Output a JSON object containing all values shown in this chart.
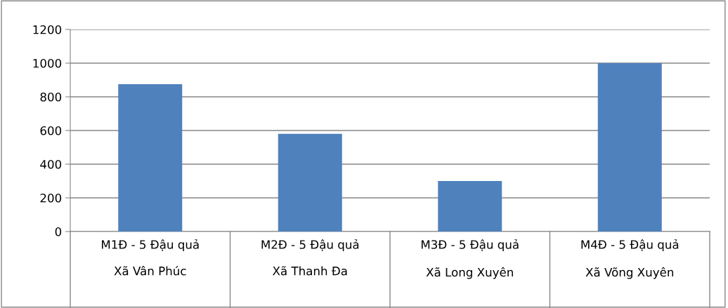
{
  "chart_data": {
    "type": "bar",
    "categories": [
      "M1Đ - 5 Đậu quả\nXã Vân Phúc",
      "M2Đ - 5 Đậu quả\nXã Thanh Đa",
      "M3Đ - 5 Đậu quả\nXã Long Xuyên",
      "M4Đ - 5 Đậu quả\nXã Võng Xuyên"
    ],
    "values": [
      875,
      580,
      300,
      1000
    ],
    "color": "#4f81bd",
    "ylim": [
      0,
      1200
    ],
    "yticks": [
      0,
      200,
      400,
      600,
      800,
      1000,
      1200
    ],
    "grid": "y"
  }
}
